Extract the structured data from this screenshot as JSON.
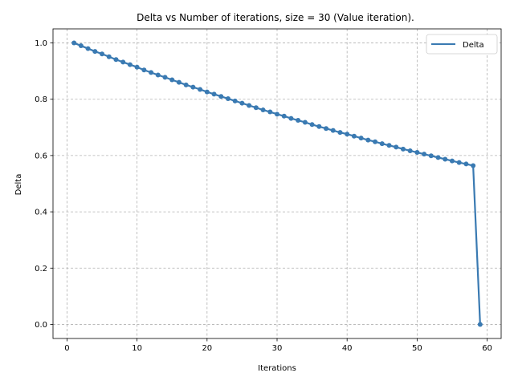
{
  "chart_data": {
    "type": "line",
    "title": "Delta vs Number of iterations, size = 30 (Value iteration).",
    "xlabel": "Iterations",
    "ylabel": "Delta",
    "xlim": [
      -2,
      62
    ],
    "ylim": [
      -0.05,
      1.05
    ],
    "xticks": [
      0,
      10,
      20,
      30,
      40,
      50,
      60
    ],
    "yticks": [
      0.0,
      0.2,
      0.4,
      0.6,
      0.8,
      1.0
    ],
    "xtick_labels": [
      "0",
      "10",
      "20",
      "30",
      "40",
      "50",
      "60"
    ],
    "ytick_labels": [
      "0.0",
      "0.2",
      "0.4",
      "0.6",
      "0.8",
      "1.0"
    ],
    "grid": true,
    "legend_position": "top-right",
    "line_color": "#3a7ab2",
    "series": [
      {
        "name": "Delta",
        "x": [
          1,
          2,
          3,
          4,
          5,
          6,
          7,
          8,
          9,
          10,
          11,
          12,
          13,
          14,
          15,
          16,
          17,
          18,
          19,
          20,
          21,
          22,
          23,
          24,
          25,
          26,
          27,
          28,
          29,
          30,
          31,
          32,
          33,
          34,
          35,
          36,
          37,
          38,
          39,
          40,
          41,
          42,
          43,
          44,
          45,
          46,
          47,
          48,
          49,
          50,
          51,
          52,
          53,
          54,
          55,
          56,
          57,
          58,
          59
        ],
        "values": [
          1.0,
          0.99,
          0.98,
          0.97,
          0.961,
          0.951,
          0.941,
          0.932,
          0.923,
          0.914,
          0.904,
          0.895,
          0.886,
          0.878,
          0.869,
          0.86,
          0.851,
          0.843,
          0.835,
          0.826,
          0.818,
          0.81,
          0.802,
          0.794,
          0.786,
          0.778,
          0.77,
          0.762,
          0.755,
          0.747,
          0.74,
          0.732,
          0.725,
          0.718,
          0.71,
          0.703,
          0.696,
          0.689,
          0.682,
          0.676,
          0.669,
          0.662,
          0.655,
          0.649,
          0.642,
          0.636,
          0.63,
          0.623,
          0.617,
          0.611,
          0.605,
          0.599,
          0.593,
          0.587,
          0.581,
          0.575,
          0.57,
          0.564,
          0.0
        ]
      }
    ]
  }
}
